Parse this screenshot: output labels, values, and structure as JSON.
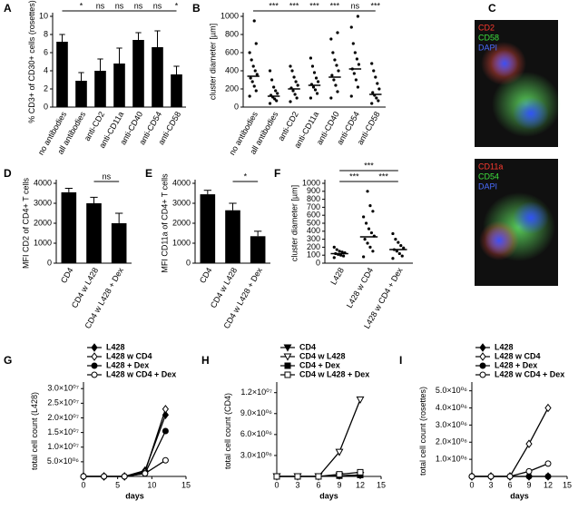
{
  "chart_data": [
    {
      "type": "bar",
      "label": "A",
      "ylabel": "% CD3+ of CD30+ cells (rosettes)",
      "categories": [
        "no antibodies",
        "all antibodies",
        "anti-CD2",
        "anti-CD11a",
        "anti-CD40",
        "anti-CD54",
        "anti-CD58"
      ],
      "values": [
        7.2,
        2.9,
        4.0,
        4.8,
        7.4,
        6.6,
        3.6
      ],
      "errors": [
        0.8,
        0.9,
        1.3,
        1.7,
        0.8,
        1.8,
        0.9
      ],
      "color": "#000000",
      "ylim": [
        0,
        10
      ],
      "yticks": [
        0,
        2,
        4,
        6,
        8,
        10
      ],
      "comparisons": [
        {
          "between": [
            0,
            1
          ],
          "label": "*"
        },
        {
          "between": [
            0,
            2
          ],
          "label": "ns"
        },
        {
          "between": [
            0,
            3
          ],
          "label": "ns"
        },
        {
          "between": [
            0,
            4
          ],
          "label": "ns"
        },
        {
          "between": [
            0,
            5
          ],
          "label": "ns"
        },
        {
          "between": [
            0,
            6
          ],
          "label": "*"
        }
      ]
    },
    {
      "type": "dot",
      "label": "B",
      "ylabel": "cluster diameter [µm]",
      "categories": [
        "no antibodies",
        "all antibodies",
        "anti-CD2",
        "anti-CD11a",
        "anti-CD40",
        "anti-CD54",
        "anti-CD58"
      ],
      "values": [
        [
          120,
          180,
          230,
          280,
          320,
          360,
          400,
          450,
          520,
          600,
          700,
          950
        ],
        [
          40,
          70,
          90,
          110,
          130,
          150,
          180,
          220,
          300,
          400
        ],
        [
          60,
          100,
          140,
          180,
          210,
          240,
          280,
          330,
          400,
          450
        ],
        [
          100,
          150,
          190,
          220,
          250,
          280,
          320,
          380,
          450,
          540
        ],
        [
          100,
          170,
          240,
          300,
          350,
          400,
          460,
          520,
          600,
          750,
          820
        ],
        [
          120,
          220,
          300,
          370,
          420,
          470,
          530,
          600,
          700,
          880,
          1000
        ],
        [
          40,
          70,
          100,
          130,
          160,
          200,
          260,
          330,
          400,
          480
        ]
      ],
      "medians": [
        340,
        120,
        200,
        240,
        330,
        420,
        140
      ],
      "color": "#000000",
      "ylim": [
        0,
        1000
      ],
      "yticks": [
        0,
        200,
        400,
        600,
        800,
        1000
      ],
      "comparisons": [
        {
          "between": [
            0,
            1
          ],
          "label": "***"
        },
        {
          "between": [
            0,
            2
          ],
          "label": "***"
        },
        {
          "between": [
            0,
            3
          ],
          "label": "***"
        },
        {
          "between": [
            0,
            4
          ],
          "label": "***"
        },
        {
          "between": [
            0,
            5
          ],
          "label": "ns"
        },
        {
          "between": [
            0,
            6
          ],
          "label": "***"
        }
      ]
    },
    {
      "type": "image",
      "label": "C",
      "images": [
        {
          "channels": [
            {
              "name": "CD2",
              "color": "#ff3b30"
            },
            {
              "name": "CD58",
              "color": "#3ee03e"
            },
            {
              "name": "DAPI",
              "color": "#4a6cff"
            }
          ]
        },
        {
          "channels": [
            {
              "name": "CD11a",
              "color": "#ff3b30"
            },
            {
              "name": "CD54",
              "color": "#3ee03e"
            },
            {
              "name": "DAPI",
              "color": "#4a6cff"
            }
          ]
        }
      ]
    },
    {
      "type": "bar",
      "label": "D",
      "ylabel": "MFI CD2 of CD4+ T cells",
      "categories": [
        "CD4",
        "CD4 w L428",
        "CD4 w L428 + Dex"
      ],
      "values": [
        3550,
        3000,
        2000
      ],
      "errors": [
        200,
        300,
        500
      ],
      "color": "#000000",
      "ylim": [
        0,
        4000
      ],
      "yticks": [
        0,
        1000,
        2000,
        3000,
        4000
      ],
      "comparisons": [
        {
          "between": [
            1,
            2
          ],
          "label": "ns"
        }
      ]
    },
    {
      "type": "bar",
      "label": "E",
      "ylabel": "MFI CD11a of CD4+ T cells",
      "categories": [
        "CD4",
        "CD4 w L428",
        "CD4 w L428 + Dex"
      ],
      "values": [
        3450,
        2650,
        1350
      ],
      "errors": [
        200,
        350,
        250
      ],
      "color": "#000000",
      "ylim": [
        0,
        4000
      ],
      "yticks": [
        0,
        1000,
        2000,
        3000,
        4000
      ],
      "comparisons": [
        {
          "between": [
            1,
            2
          ],
          "label": "*"
        }
      ]
    },
    {
      "type": "dot",
      "label": "F",
      "ylabel": "cluster diameter [µm]",
      "categories": [
        "L428",
        "L428 w CD4",
        "L428 w CD4 + Dex"
      ],
      "values": [
        [
          70,
          90,
          100,
          110,
          120,
          130,
          140,
          150,
          170,
          200
        ],
        [
          80,
          150,
          200,
          250,
          300,
          340,
          380,
          430,
          500,
          580,
          650,
          720,
          900
        ],
        [
          60,
          90,
          120,
          150,
          170,
          190,
          220,
          260,
          300,
          370
        ]
      ],
      "medians": [
        120,
        330,
        170
      ],
      "color": "#000000",
      "ylim": [
        0,
        1000
      ],
      "yticks": [
        0,
        100,
        200,
        300,
        400,
        500,
        600,
        700,
        800,
        900,
        1000
      ],
      "comparisons": [
        {
          "between": [
            0,
            1
          ],
          "label": "***"
        },
        {
          "between": [
            1,
            2
          ],
          "label": "***"
        },
        {
          "between": [
            0,
            2
          ],
          "label": "***"
        }
      ]
    },
    {
      "type": "line",
      "label": "G",
      "ylabel": "total cell count (L428)",
      "xlabel": "days",
      "x": [
        0,
        3,
        6,
        9,
        12
      ],
      "xlim": [
        0,
        15
      ],
      "xticks": [
        0,
        5,
        10,
        15
      ],
      "ylim": [
        0,
        31000000
      ],
      "yticks": [
        {
          "value": 5000000,
          "label": "5.0×10⁰⁶"
        },
        {
          "value": 10000000,
          "label": "1.0×10⁰⁷"
        },
        {
          "value": 15000000,
          "label": "1.5×10⁰⁷"
        },
        {
          "value": 20000000,
          "label": "2.0×10⁰⁷"
        },
        {
          "value": 25000000,
          "label": "2.5×10⁰⁷"
        },
        {
          "value": 30000000,
          "label": "3.0×10⁰⁷"
        }
      ],
      "legend": "top-left",
      "series": [
        {
          "name": "L428",
          "marker": "diamond",
          "filled": true,
          "color": "#000000",
          "values": [
            0,
            0,
            0,
            2000000,
            21000000
          ]
        },
        {
          "name": "L428 w CD4",
          "marker": "diamond",
          "filled": false,
          "color": "#000000",
          "values": [
            0,
            0,
            0,
            1500000,
            23000000
          ]
        },
        {
          "name": "L428 + Dex",
          "marker": "circle",
          "filled": true,
          "color": "#000000",
          "values": [
            0,
            0,
            0,
            1000000,
            15500000
          ]
        },
        {
          "name": "L428 w CD4 + Dex",
          "marker": "circle",
          "filled": false,
          "color": "#000000",
          "values": [
            0,
            0,
            0,
            1000000,
            5500000
          ]
        }
      ]
    },
    {
      "type": "line",
      "label": "H",
      "ylabel": "total cell count (CD4)",
      "xlabel": "days",
      "x": [
        0,
        3,
        6,
        9,
        12
      ],
      "xlim": [
        0,
        15
      ],
      "xticks": [
        0,
        3,
        6,
        9,
        12,
        15
      ],
      "ylim": [
        0,
        13000000
      ],
      "yticks": [
        {
          "value": 3000000,
          "label": "3.0×10⁰⁶"
        },
        {
          "value": 6000000,
          "label": "6.0×10⁰⁶"
        },
        {
          "value": 9000000,
          "label": "9.0×10⁰⁶"
        },
        {
          "value": 12000000,
          "label": "1.2×10⁰⁷"
        }
      ],
      "legend": "top-left",
      "series": [
        {
          "name": "CD4",
          "marker": "triangle-down",
          "filled": true,
          "color": "#000000",
          "values": [
            0,
            0,
            0,
            100000,
            200000
          ]
        },
        {
          "name": "CD4 w L428",
          "marker": "triangle-down",
          "filled": false,
          "color": "#000000",
          "values": [
            0,
            0,
            0,
            3500000,
            11000000
          ]
        },
        {
          "name": "CD4 + Dex",
          "marker": "square",
          "filled": true,
          "color": "#000000",
          "values": [
            0,
            0,
            0,
            100000,
            200000
          ]
        },
        {
          "name": "CD4 w L428 + Dex",
          "marker": "square",
          "filled": false,
          "color": "#000000",
          "values": [
            0,
            0,
            0,
            300000,
            600000
          ]
        }
      ]
    },
    {
      "type": "line",
      "label": "I",
      "ylabel": "total cell count (rosettes)",
      "xlabel": "days",
      "x": [
        0,
        3,
        6,
        9,
        12
      ],
      "xlim": [
        0,
        15
      ],
      "xticks": [
        0,
        3,
        6,
        9,
        12,
        15
      ],
      "ylim": [
        0,
        5300000
      ],
      "yticks": [
        {
          "value": 1000000,
          "label": "1.0×10⁰⁶"
        },
        {
          "value": 2000000,
          "label": "2.0×10⁰⁶"
        },
        {
          "value": 3000000,
          "label": "3.0×10⁰⁶"
        },
        {
          "value": 4000000,
          "label": "4.0×10⁰⁶"
        },
        {
          "value": 5000000,
          "label": "5.0×10⁰⁶"
        }
      ],
      "legend": "top-left",
      "series": [
        {
          "name": "L428",
          "marker": "diamond",
          "filled": true,
          "color": "#000000",
          "values": [
            0,
            0,
            0,
            0,
            0
          ]
        },
        {
          "name": "L428 w CD4",
          "marker": "diamond",
          "filled": false,
          "color": "#000000",
          "values": [
            0,
            0,
            0,
            1900000,
            4000000
          ]
        },
        {
          "name": "L428 + Dex",
          "marker": "circle",
          "filled": true,
          "color": "#000000",
          "values": [
            0,
            0,
            0,
            0,
            0
          ]
        },
        {
          "name": "L428 w CD4 + Dex",
          "marker": "circle",
          "filled": false,
          "color": "#000000",
          "values": [
            0,
            0,
            0,
            300000,
            750000
          ]
        }
      ]
    }
  ]
}
